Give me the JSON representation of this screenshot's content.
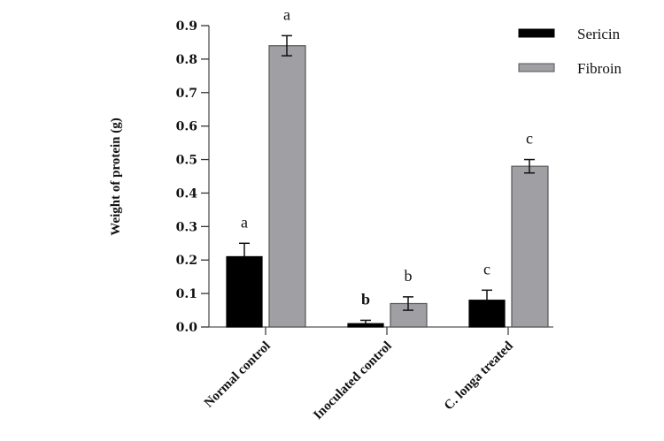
{
  "chart_data": {
    "type": "bar",
    "title": "",
    "xlabel": "",
    "ylabel": "Weight of protein (g)",
    "ylim": [
      0,
      0.9
    ],
    "yticks": [
      "0.0",
      "0.1",
      "0.2",
      "0.3",
      "0.4",
      "0.5",
      "0.6",
      "0.7",
      "0.8",
      "0.9"
    ],
    "categories": [
      "Normal control",
      "Inoculated control",
      "C. longa treated"
    ],
    "legend_position": "top-right",
    "grid": false,
    "series": [
      {
        "name": "Sericin",
        "color": "#000000",
        "values": [
          0.21,
          0.01,
          0.08
        ],
        "errors": [
          0.04,
          0.01,
          0.03
        ],
        "labels": [
          "a",
          "b",
          "c"
        ]
      },
      {
        "name": "Fibroin",
        "color": "#a0a0a4",
        "values": [
          0.84,
          0.07,
          0.48
        ],
        "errors": [
          0.03,
          0.02,
          0.02
        ],
        "labels": [
          "a",
          "b",
          "c"
        ]
      }
    ]
  }
}
